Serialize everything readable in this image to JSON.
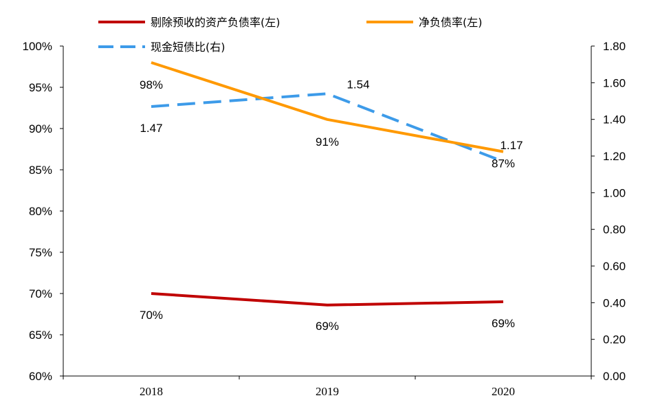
{
  "chart_data": {
    "type": "line",
    "categories": [
      "2018",
      "2019",
      "2020"
    ],
    "left_axis": {
      "ylim": [
        0.6,
        1.0
      ],
      "ticks": [
        "60%",
        "65%",
        "70%",
        "75%",
        "80%",
        "85%",
        "90%",
        "95%",
        "100%"
      ]
    },
    "right_axis": {
      "ylim": [
        0.0,
        1.8
      ],
      "ticks": [
        "0.00",
        "0.20",
        "0.40",
        "0.60",
        "0.80",
        "1.00",
        "1.20",
        "1.40",
        "1.60",
        "1.80"
      ]
    },
    "series": [
      {
        "name": "剔除预收的资产负债率(左)",
        "axis": "left",
        "color": "#c00000",
        "dash": false,
        "values": [
          0.7,
          0.686,
          0.69
        ],
        "labels": [
          "70%",
          "69%",
          "69%"
        ]
      },
      {
        "name": "净负债率(左)",
        "axis": "left",
        "color": "#ff9900",
        "dash": false,
        "values": [
          0.98,
          0.911,
          0.872
        ],
        "labels": [
          "98%",
          "91%",
          "87%"
        ]
      },
      {
        "name": "现金短债比(右)",
        "axis": "right",
        "color": "#3d9be9",
        "dash": true,
        "values": [
          1.47,
          1.54,
          1.17
        ],
        "labels": [
          "1.47",
          "1.54",
          "1.17"
        ]
      }
    ]
  }
}
